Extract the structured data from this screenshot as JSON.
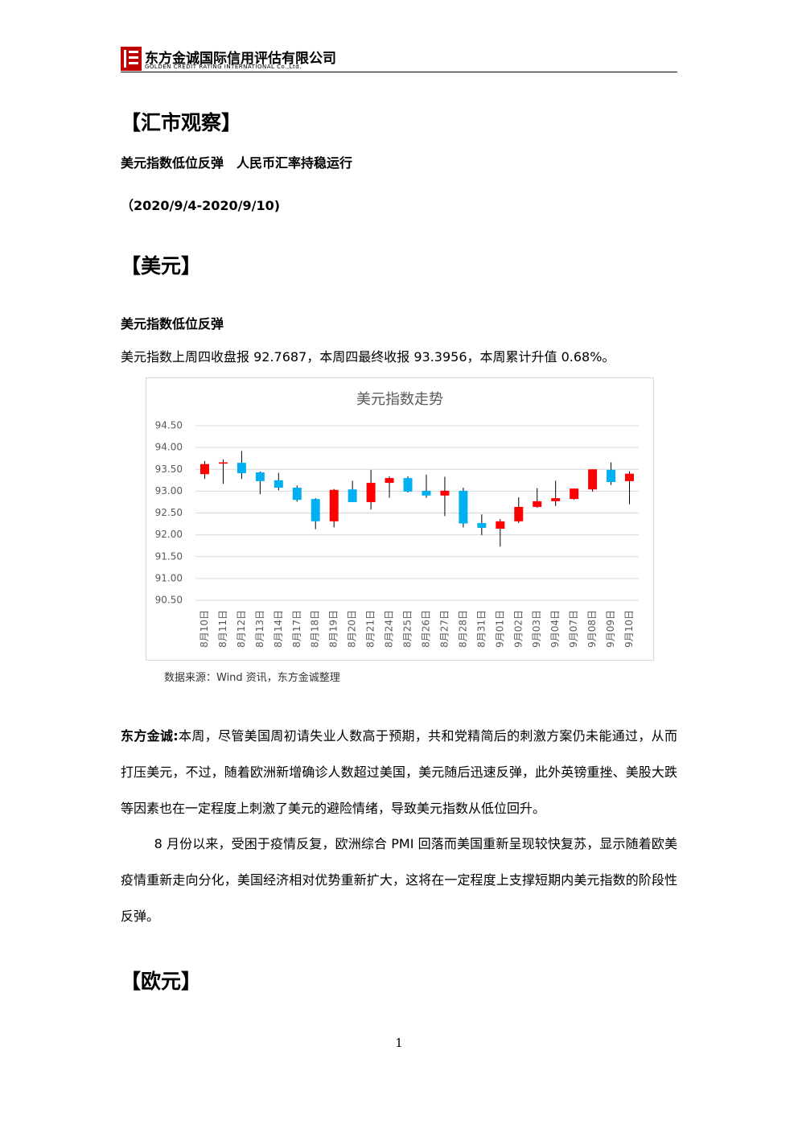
{
  "header": {
    "company": "东方金诚国际信用评估有限公司",
    "company_en": "GOLDEN CREDIT RATING INTERNATIONAL Co.,Ltd."
  },
  "section_title": "【汇市观察】",
  "headline": "美元指数低位反弹　人民币汇率持稳运行",
  "date_range": "（2020/9/4-2020/9/10)",
  "usd": {
    "heading": "【美元】",
    "subheading": "美元指数低位反弹",
    "summary": "美元指数上周四收盘报 92.7687，本周四最终收报 93.3956，本周累计升值 0.68%。",
    "source": "数据来源：Wind 资讯，东方金诚整理",
    "commentary_label": "东方金诚:",
    "commentary": "本周，尽管美国周初请失业人数高于预期，共和党精简后的刺激方案仍未能通过，从而打压美元，不过，随着欧洲新增确诊人数超过美国，美元随后迅速反弹，此外英镑重挫、美股大跌等因素也在一定程度上刺激了美元的避险情绪，导致美元指数从低位回升。",
    "paragraph": "8 月份以来，受困于疫情反复，欧洲综合 PMI 回落而美国重新呈现较快复苏，显示随着欧美疫情重新走向分化，美国经济相对优势重新扩大，这将在一定程度上支撑短期内美元指数的阶段性反弹。"
  },
  "eur_heading": "【欧元】",
  "page_number": "1",
  "chart_data": {
    "type": "candlestick",
    "title": "美元指数走势",
    "categories": [
      "8月10日",
      "8月11日",
      "8月12日",
      "8月13日",
      "8月14日",
      "8月17日",
      "8月18日",
      "8月19日",
      "8月20日",
      "8月21日",
      "8月24日",
      "8月25日",
      "8月26日",
      "8月27日",
      "8月28日",
      "8月31日",
      "9月01日",
      "9月02日",
      "9月03日",
      "9月04日",
      "9月07日",
      "9月08日",
      "9月09日",
      "9月10日"
    ],
    "open": [
      93.39,
      93.63,
      93.65,
      93.43,
      93.25,
      93.08,
      92.82,
      92.31,
      93.04,
      92.75,
      93.19,
      93.3,
      93.01,
      92.9,
      93.01,
      92.27,
      92.14,
      92.31,
      92.64,
      92.77,
      92.82,
      93.04,
      93.49,
      93.23
    ],
    "high": [
      93.69,
      93.73,
      93.92,
      93.45,
      93.42,
      93.13,
      92.84,
      93.05,
      93.24,
      93.49,
      93.34,
      93.34,
      93.38,
      93.33,
      93.08,
      92.47,
      92.36,
      92.86,
      93.07,
      93.24,
      93.06,
      93.5,
      93.66,
      93.45
    ],
    "low": [
      93.28,
      93.17,
      93.28,
      92.93,
      93.02,
      92.76,
      92.13,
      92.17,
      92.75,
      92.58,
      92.85,
      92.97,
      92.85,
      92.43,
      92.17,
      91.99,
      91.73,
      92.27,
      92.62,
      92.66,
      92.8,
      92.99,
      93.14,
      92.7
    ],
    "close": [
      93.62,
      93.66,
      93.41,
      93.23,
      93.08,
      92.8,
      92.31,
      93.03,
      92.75,
      93.19,
      93.3,
      92.99,
      92.9,
      93.01,
      92.26,
      92.16,
      92.31,
      92.64,
      92.77,
      92.84,
      93.06,
      93.5,
      93.21,
      93.4
    ],
    "up_color": "#ff0000",
    "down_color": "#00b0f0",
    "ylim": [
      90.5,
      94.5
    ],
    "yticks": [
      {
        "value": 90.5,
        "label": "90.50"
      },
      {
        "value": 91,
        "label": "91.00"
      },
      {
        "value": 91.5,
        "label": "91.50"
      },
      {
        "value": 92,
        "label": "92.00"
      },
      {
        "value": 92.5,
        "label": "92.50"
      },
      {
        "value": 93,
        "label": "93.00"
      },
      {
        "value": 93.5,
        "label": "93.50"
      },
      {
        "value": 94,
        "label": "94.00"
      },
      {
        "value": 94.5,
        "label": "94.50"
      }
    ],
    "grid": true
  }
}
